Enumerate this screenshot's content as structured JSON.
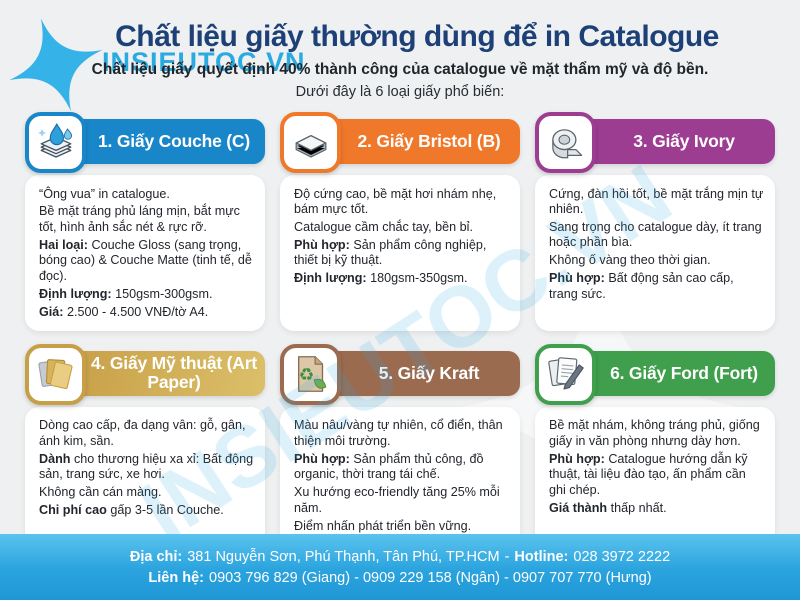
{
  "page": {
    "title": "Chất liệu giấy thường dùng để in Catalogue",
    "logo_text": "INSIEUTOC.VN",
    "subtitle": "Chất liệu giấy quyết định 40% thành công của catalogue về mặt thẩm mỹ và độ bền.",
    "intro": "Dưới đây là 6 loại giấy phổ biến:",
    "watermark": "INSIEUTOC.VN"
  },
  "colors": {
    "background": "#eef0f1",
    "title_navy": "#1d4077",
    "logo_cyan": "#29abe2",
    "footer_blue_top": "#5ac3ee",
    "footer_blue_bottom": "#1f97d6",
    "card1_blue": "#1886c9",
    "card2_orange": "#f0782a",
    "card3_purple": "#9c3d92",
    "card4_gold": "#c79f47",
    "card5_brown": "#9b6b50",
    "card6_green": "#3f9f4c"
  },
  "cards": [
    {
      "title": "1. Giấy Couche (C)",
      "accent": "#1886c9",
      "band": "#1886c9",
      "icon": "paper-stack-water-drops-icon",
      "paragraphs": [
        {
          "b": "",
          "t": "“Ông vua” in catalogue."
        },
        {
          "b": "",
          "t": "Bề mặt tráng phủ láng mịn, bắt mực tốt, hình ảnh sắc nét & rực rỡ."
        },
        {
          "b": "Hai loại:",
          "t": "Couche Gloss (sang trọng, bóng cao) & Couche Matte (tinh tế, dễ đọc)."
        },
        {
          "b": "Định lượng:",
          "t": "150gsm-300gsm."
        },
        {
          "b": "Giá:",
          "t": "2.500 - 4.500 VNĐ/tờ A4."
        }
      ]
    },
    {
      "title": "2. Giấy Bristol (B)",
      "accent": "#f0782a",
      "band": "#f0782a",
      "icon": "paper-stack-icon",
      "paragraphs": [
        {
          "b": "",
          "t": "Độ cứng cao, bề mặt hơi nhám nhẹ, bám mực tốt."
        },
        {
          "b": "",
          "t": "Catalogue cầm chắc tay, bền bỉ."
        },
        {
          "b": "Phù hợp:",
          "t": "Sản phẩm công nghiệp, thiết bị kỹ thuật."
        },
        {
          "b": "Định lượng:",
          "t": "180gsm-350gsm."
        }
      ]
    },
    {
      "title": "3. Giấy Ivory",
      "accent": "#9c3d92",
      "band": "#9c3d92",
      "icon": "paper-roll-icon",
      "paragraphs": [
        {
          "b": "",
          "t": "Cứng, đàn hồi tốt, bề mặt trắng mịn tự nhiên."
        },
        {
          "b": "",
          "t": "Sang trọng cho catalogue dày, ít trang hoặc phần bìa."
        },
        {
          "b": "",
          "t": "Không ố vàng theo thời gian."
        },
        {
          "b": "Phù hợp:",
          "t": "Bất động sản cao cấp, trang sức."
        }
      ]
    },
    {
      "title": "4. Giấy Mỹ thuật (Art Paper)",
      "accent": "#c79f47",
      "band": "linear-gradient(100deg,#c79f47,#dcbf6a)",
      "icon": "gold-paper-sheets-icon",
      "paragraphs": [
        {
          "b": "",
          "t": "Dòng cao cấp, đa dạng vân: gỗ, gân, ánh kim, sần."
        },
        {
          "b": "Dành",
          "t": "cho thương hiệu xa xỉ: Bất động sản, trang sức, xe hơi."
        },
        {
          "b": "",
          "t": "Không cần cán màng."
        },
        {
          "b": "Chi phí cao",
          "t": "gấp 3-5 lần Couche."
        }
      ]
    },
    {
      "title": "5. Giấy Kraft",
      "accent": "#9b6b50",
      "band": "#9b6b50",
      "icon": "recycled-paper-leaf-icon",
      "paragraphs": [
        {
          "b": "",
          "t": "Màu nâu/vàng tự nhiên, cổ điển, thân thiện môi trường."
        },
        {
          "b": "Phù hợp:",
          "t": "Sản phẩm thủ công, đồ organic, thời trang tái chế."
        },
        {
          "b": "",
          "t": "Xu hướng eco-friendly tăng 25% mỗi năm."
        },
        {
          "b": "",
          "t": "Điểm nhấn phát triển bền vững."
        }
      ]
    },
    {
      "title": "6. Giấy Ford (Fort)",
      "accent": "#3f9f4c",
      "band": "#3f9f4c",
      "icon": "documents-pen-icon",
      "paragraphs": [
        {
          "b": "",
          "t": "Bề mặt nhám, không tráng phủ, giống giấy in văn phòng nhưng dày hơn."
        },
        {
          "b": "Phù hợp:",
          "t": "Catalogue hướng dẫn kỹ thuật, tài liệu đào tạo, ấn phẩm cần ghi chép."
        },
        {
          "b": "Giá thành",
          "t": "thấp nhất."
        }
      ]
    }
  ],
  "footer": {
    "address_label": "Địa chỉ:",
    "address": "381 Nguyễn Sơn, Phú Thạnh, Tân Phú, TP.HCM",
    "separator": "-",
    "hotline_label": "Hotline:",
    "hotline": "028 3972 2222",
    "contact_label": "Liên hệ:",
    "contacts": "0903 796 829 (Giang) - 0909 229 158 (Ngân) - 0907 707 770 (Hưng)"
  }
}
